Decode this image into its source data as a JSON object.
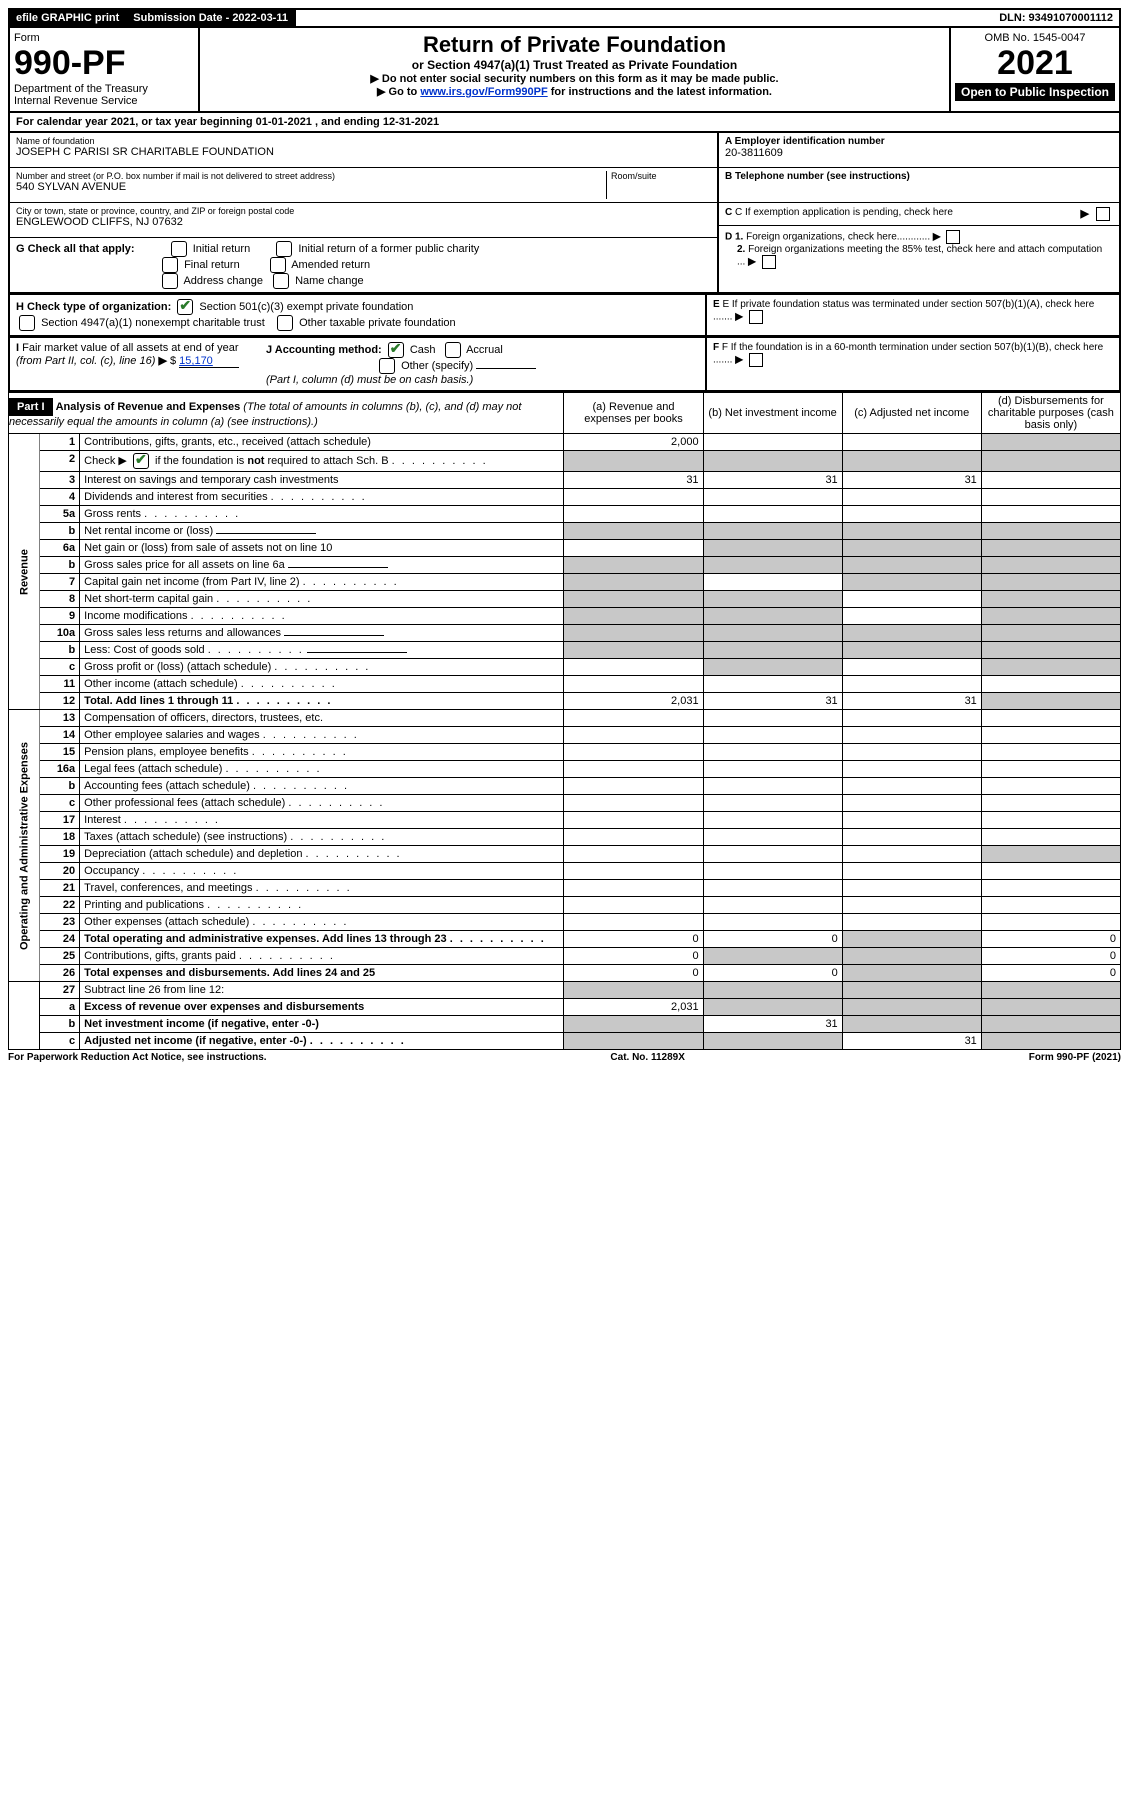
{
  "top_bar": {
    "efile": "efile GRAPHIC print",
    "submission_label": "Submission Date - 2022-03-11",
    "dln": "DLN: 93491070001112"
  },
  "header": {
    "form_label": "Form",
    "form_number": "990-PF",
    "dept1": "Department of the Treasury",
    "dept2": "Internal Revenue Service",
    "title": "Return of Private Foundation",
    "subtitle": "or Section 4947(a)(1) Trust Treated as Private Foundation",
    "note1": "▶ Do not enter social security numbers on this form as it may be made public.",
    "note2_pre": "▶ Go to ",
    "note2_link": "www.irs.gov/Form990PF",
    "note2_post": " for instructions and the latest information.",
    "omb": "OMB No. 1545-0047",
    "year": "2021",
    "open": "Open to Public Inspection"
  },
  "calendar": {
    "text_pre": "For calendar year 2021, or tax year beginning ",
    "begin": "01-01-2021",
    "text_mid": " , and ending ",
    "end": "12-31-2021"
  },
  "foundation": {
    "name_label": "Name of foundation",
    "name": "JOSEPH C PARISI SR CHARITABLE FOUNDATION",
    "addr_label": "Number and street (or P.O. box number if mail is not delivered to street address)",
    "room_label": "Room/suite",
    "addr": "540 SYLVAN AVENUE",
    "city_label": "City or town, state or province, country, and ZIP or foreign postal code",
    "city": "ENGLEWOOD CLIFFS, NJ  07632"
  },
  "right_info": {
    "a_label": "A Employer identification number",
    "a_val": "20-3811609",
    "b_label": "B Telephone number (see instructions)",
    "c_label": "C If exemption application is pending, check here",
    "d1": "D 1. Foreign organizations, check here............",
    "d2": "2. Foreign organizations meeting the 85% test, check here and attach computation ...",
    "e": "E  If private foundation status was terminated under section 507(b)(1)(A), check here .......",
    "f": "F  If the foundation is in a 60-month termination under section 507(b)(1)(B), check here .......",
    "arrow": "▶"
  },
  "section_g": {
    "label": "G Check all that apply:",
    "opts": [
      "Initial return",
      "Final return",
      "Address change",
      "Initial return of a former public charity",
      "Amended return",
      "Name change"
    ]
  },
  "section_h": {
    "label": "H Check type of organization:",
    "opt1": "Section 501(c)(3) exempt private foundation",
    "opt2": "Section 4947(a)(1) nonexempt charitable trust",
    "opt3": "Other taxable private foundation"
  },
  "section_i": {
    "label": "I Fair market value of all assets at end of year (from Part II, col. (c), line 16) ",
    "arrow": "▶",
    "dollar": "$",
    "value": "15,170"
  },
  "section_j": {
    "label": "J Accounting method:",
    "cash": "Cash",
    "accrual": "Accrual",
    "other": "Other (specify)",
    "note": "(Part I, column (d) must be on cash basis.)"
  },
  "part1": {
    "label": "Part I",
    "title": "Analysis of Revenue and Expenses",
    "title_note": " (The total of amounts in columns (b), (c), and (d) may not necessarily equal the amounts in column (a) (see instructions).)",
    "col_a": "(a)  Revenue and expenses per books",
    "col_b": "(b)  Net investment income",
    "col_c": "(c)  Adjusted net income",
    "col_d": "(d)  Disbursements for charitable purposes (cash basis only)"
  },
  "side_labels": {
    "revenue": "Revenue",
    "expenses": "Operating and Administrative Expenses"
  },
  "rows": [
    {
      "n": "1",
      "d": "Contributions, gifts, grants, etc., received (attach schedule)",
      "a": "2,000",
      "shade_d": true
    },
    {
      "n": "2",
      "d": "Check ▶ ☑ if the foundation is not required to attach Sch. B",
      "dots": true,
      "shade_all": true
    },
    {
      "n": "3",
      "d": "Interest on savings and temporary cash investments",
      "a": "31",
      "b": "31",
      "c": "31"
    },
    {
      "n": "4",
      "d": "Dividends and interest from securities",
      "dots": true
    },
    {
      "n": "5a",
      "d": "Gross rents",
      "dots": true
    },
    {
      "n": "b",
      "d": "Net rental income or (loss)",
      "underline": true,
      "shade_abc_d": true
    },
    {
      "n": "6a",
      "d": "Net gain or (loss) from sale of assets not on line 10",
      "shade_bcd": true
    },
    {
      "n": "b",
      "d": "Gross sales price for all assets on line 6a",
      "underline": true,
      "shade_all": true
    },
    {
      "n": "7",
      "d": "Capital gain net income (from Part IV, line 2)",
      "dots": true,
      "shade_a": true,
      "shade_cd": true
    },
    {
      "n": "8",
      "d": "Net short-term capital gain",
      "dots": true,
      "shade_ab": true,
      "shade_d": true
    },
    {
      "n": "9",
      "d": "Income modifications",
      "dots": true,
      "shade_ab": true,
      "shade_d": true
    },
    {
      "n": "10a",
      "d": "Gross sales less returns and allowances",
      "underline": true,
      "shade_all": true
    },
    {
      "n": "b",
      "d": "Less: Cost of goods sold",
      "dots": true,
      "underline": true,
      "shade_all": true
    },
    {
      "n": "c",
      "d": "Gross profit or (loss) (attach schedule)",
      "dots": true,
      "shade_b": true,
      "shade_d": true
    },
    {
      "n": "11",
      "d": "Other income (attach schedule)",
      "dots": true
    },
    {
      "n": "12",
      "d": "Total. Add lines 1 through 11",
      "dots": true,
      "bold": true,
      "a": "2,031",
      "b": "31",
      "c": "31",
      "shade_d": true
    }
  ],
  "exp_rows": [
    {
      "n": "13",
      "d": "Compensation of officers, directors, trustees, etc."
    },
    {
      "n": "14",
      "d": "Other employee salaries and wages",
      "dots": true
    },
    {
      "n": "15",
      "d": "Pension plans, employee benefits",
      "dots": true
    },
    {
      "n": "16a",
      "d": "Legal fees (attach schedule)",
      "dots": true
    },
    {
      "n": "b",
      "d": "Accounting fees (attach schedule)",
      "dots": true
    },
    {
      "n": "c",
      "d": "Other professional fees (attach schedule)",
      "dots": true
    },
    {
      "n": "17",
      "d": "Interest",
      "dots": true
    },
    {
      "n": "18",
      "d": "Taxes (attach schedule) (see instructions)",
      "dots": true
    },
    {
      "n": "19",
      "d": "Depreciation (attach schedule) and depletion",
      "dots": true,
      "shade_d": true
    },
    {
      "n": "20",
      "d": "Occupancy",
      "dots": true
    },
    {
      "n": "21",
      "d": "Travel, conferences, and meetings",
      "dots": true
    },
    {
      "n": "22",
      "d": "Printing and publications",
      "dots": true
    },
    {
      "n": "23",
      "d": "Other expenses (attach schedule)",
      "dots": true
    },
    {
      "n": "24",
      "d": "Total operating and administrative expenses. Add lines 13 through 23",
      "dots": true,
      "bold": true,
      "a": "0",
      "b": "0",
      "shade_c": true,
      "dval": "0"
    },
    {
      "n": "25",
      "d": "Contributions, gifts, grants paid",
      "dots": true,
      "a": "0",
      "shade_bc": true,
      "dval": "0"
    },
    {
      "n": "26",
      "d": "Total expenses and disbursements. Add lines 24 and 25",
      "bold": true,
      "a": "0",
      "b": "0",
      "shade_c": true,
      "dval": "0"
    }
  ],
  "bottom_rows": [
    {
      "n": "27",
      "d": "Subtract line 26 from line 12:",
      "shade_all": true
    },
    {
      "n": "a",
      "d": "Excess of revenue over expenses and disbursements",
      "bold": true,
      "a": "2,031",
      "shade_bcd": true
    },
    {
      "n": "b",
      "d": "Net investment income (if negative, enter -0-)",
      "bold": true,
      "shade_a": true,
      "b": "31",
      "shade_cd": true
    },
    {
      "n": "c",
      "d": "Adjusted net income (if negative, enter -0-)",
      "bold": true,
      "dots": true,
      "shade_ab": true,
      "c": "31",
      "shade_d": true
    }
  ],
  "footer": {
    "left": "For Paperwork Reduction Act Notice, see instructions.",
    "mid": "Cat. No. 11289X",
    "right": "Form 990-PF (2021)"
  }
}
